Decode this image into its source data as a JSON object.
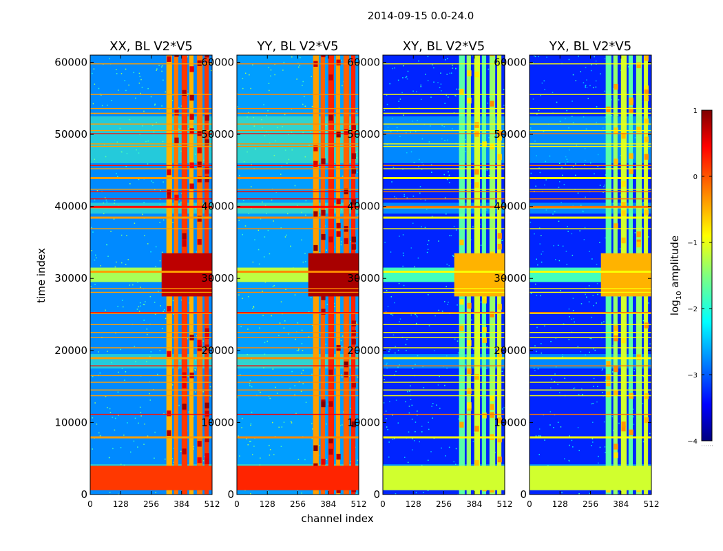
{
  "chart_data": {
    "type": "heatmap",
    "title": "2014-09-15 0.0-24.0",
    "xlabel": "channel index",
    "ylabel": "time index",
    "xlim": [
      0,
      512
    ],
    "ylim": [
      0,
      61000
    ],
    "x_ticks": [
      "0",
      "128",
      "256",
      "384",
      "512"
    ],
    "x_tick_values": [
      0,
      128,
      256,
      384,
      512
    ],
    "y_ticks": [
      "0",
      "10000",
      "20000",
      "30000",
      "40000",
      "50000",
      "60000"
    ],
    "y_tick_values": [
      0,
      10000,
      20000,
      30000,
      40000,
      50000,
      60000
    ],
    "panels": [
      {
        "name": "XX",
        "title": "XX, BL V2*V5",
        "bg_level": -2.7,
        "band_level": 0.0
      },
      {
        "name": "YY",
        "title": "YY, BL V2*V5",
        "bg_level": -2.6,
        "band_level": 0.1
      },
      {
        "name": "XY",
        "title": "XY, BL V2*V5",
        "bg_level": -3.2,
        "band_level": -1.2
      },
      {
        "name": "YX",
        "title": "YX, BL V2*V5",
        "bg_level": -3.2,
        "band_level": -1.2
      }
    ],
    "rfi_channel_start": 320,
    "rfi_channel_columns": [
      320,
      352,
      384,
      416,
      448,
      480
    ],
    "bright_time_band": [
      29500,
      31500
    ],
    "calibration_block": [
      600,
      4000
    ],
    "colorbar": {
      "label": "log10 amplitude",
      "label_base": "log",
      "label_sub": "10",
      "label_rest": " amplitude",
      "range": [
        -4,
        1
      ],
      "ticks": [
        "1",
        "0",
        "−1",
        "−2",
        "−3",
        "−4"
      ],
      "tick_values": [
        1,
        0,
        -1,
        -2,
        -3,
        -4
      ],
      "colormap": "jet"
    }
  }
}
